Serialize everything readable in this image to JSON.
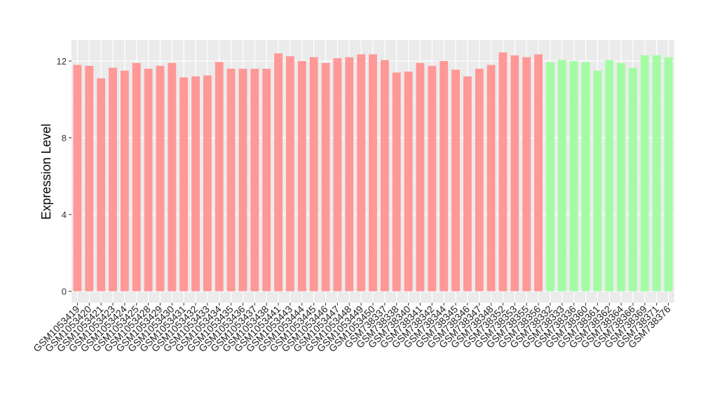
{
  "chart_data": {
    "type": "bar",
    "y_label": "Expression Level",
    "categories": [
      "GSM1053419",
      "GSM1053420",
      "GSM1053421",
      "GSM1053423",
      "GSM1053424",
      "GSM1053425",
      "GSM1053428",
      "GSM1053429",
      "GSM1053430",
      "GSM1053431",
      "GSM1053432",
      "GSM1053433",
      "GSM1053434",
      "GSM1053435",
      "GSM1053436",
      "GSM1053437",
      "GSM1053438",
      "GSM1053441",
      "GSM1053443",
      "GSM1053444",
      "GSM1053445",
      "GSM1053446",
      "GSM1053447",
      "GSM1053448",
      "GSM1053449",
      "GSM1053450",
      "GSM738337",
      "GSM738338",
      "GSM738340",
      "GSM738341",
      "GSM738342",
      "GSM738344",
      "GSM738345",
      "GSM738346",
      "GSM738347",
      "GSM738348",
      "GSM738352",
      "GSM738353",
      "GSM738355",
      "GSM738356",
      "GSM738332",
      "GSM738333",
      "GSM738336",
      "GSM738360",
      "GSM738361",
      "GSM738362",
      "GSM738364",
      "GSM738366",
      "GSM738369",
      "GSM738371",
      "GSM738376"
    ],
    "values": [
      11.8,
      11.75,
      11.1,
      11.65,
      11.5,
      11.9,
      11.6,
      11.75,
      11.9,
      11.15,
      11.2,
      11.25,
      11.95,
      11.6,
      11.6,
      11.6,
      11.6,
      12.4,
      12.25,
      12.0,
      12.2,
      11.9,
      12.15,
      12.2,
      12.35,
      12.35,
      12.05,
      11.4,
      11.45,
      11.9,
      11.75,
      12.0,
      11.55,
      11.2,
      11.6,
      11.8,
      12.45,
      12.3,
      12.2,
      12.35,
      11.95,
      12.05,
      12.0,
      11.95,
      11.5,
      12.05,
      11.9,
      11.65,
      12.3,
      12.3,
      12.2
    ],
    "colors": [
      "#ff9896",
      "#ff9896",
      "#ff9896",
      "#ff9896",
      "#ff9896",
      "#ff9896",
      "#ff9896",
      "#ff9896",
      "#ff9896",
      "#ff9896",
      "#ff9896",
      "#ff9896",
      "#ff9896",
      "#ff9896",
      "#ff9896",
      "#ff9896",
      "#ff9896",
      "#ff9896",
      "#ff9896",
      "#ff9896",
      "#ff9896",
      "#ff9896",
      "#ff9896",
      "#ff9896",
      "#ff9896",
      "#ff9896",
      "#ff9896",
      "#ff9896",
      "#ff9896",
      "#ff9896",
      "#ff9896",
      "#ff9896",
      "#ff9896",
      "#ff9896",
      "#ff9896",
      "#ff9896",
      "#ff9896",
      "#ff9896",
      "#ff9896",
      "#ff9896",
      "#a3fca3",
      "#a3fca3",
      "#a3fca3",
      "#a3fca3",
      "#a3fca3",
      "#a3fca3",
      "#a3fca3",
      "#a3fca3",
      "#a3fca3",
      "#a3fca3",
      "#a3fca3"
    ],
    "ylim": [
      -0.6,
      13.1
    ],
    "yticks": [
      0,
      4,
      8,
      12
    ],
    "grid": true
  }
}
